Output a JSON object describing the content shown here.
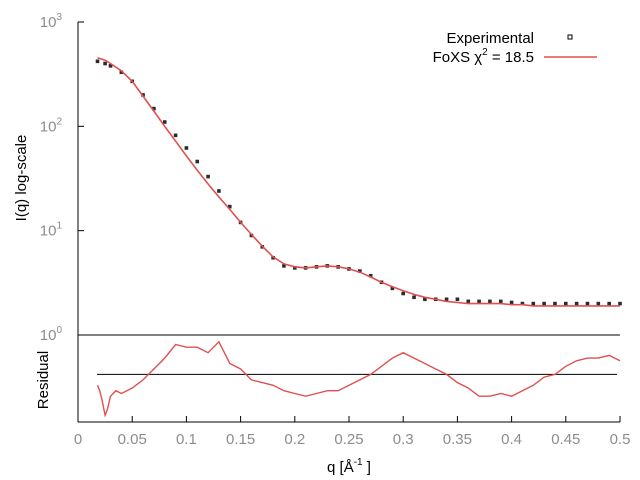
{
  "chart_data": [
    {
      "type": "scatter",
      "panel": "main",
      "xlim": [
        0,
        0.5
      ],
      "ylim": [
        1,
        1000
      ],
      "y_scale": "log",
      "ylabel": "I(q) log-scale",
      "xlabel": "",
      "y_ticks": [
        {
          "value": 1,
          "base": "10",
          "exp": "0"
        },
        {
          "value": 10,
          "base": "10",
          "exp": "1"
        },
        {
          "value": 100,
          "base": "10",
          "exp": "2"
        },
        {
          "value": 1000,
          "base": "10",
          "exp": "3"
        }
      ],
      "legend": {
        "position": "top-right",
        "experimental_label": "Experimental",
        "foxs_label_prefix": "FoXS χ",
        "foxs_label_exp": "2",
        "foxs_label_suffix": " = 18.5"
      },
      "series": [
        {
          "name": "Experimental",
          "style": "points",
          "color": "#2b2b2b",
          "x": [
            0.018,
            0.025,
            0.03,
            0.04,
            0.05,
            0.06,
            0.07,
            0.08,
            0.09,
            0.1,
            0.11,
            0.12,
            0.13,
            0.14,
            0.15,
            0.16,
            0.17,
            0.18,
            0.19,
            0.2,
            0.21,
            0.22,
            0.23,
            0.24,
            0.25,
            0.26,
            0.27,
            0.28,
            0.29,
            0.3,
            0.31,
            0.32,
            0.33,
            0.34,
            0.35,
            0.36,
            0.37,
            0.38,
            0.39,
            0.4,
            0.41,
            0.42,
            0.43,
            0.44,
            0.45,
            0.46,
            0.47,
            0.48,
            0.49,
            0.5
          ],
          "y": [
            420,
            400,
            380,
            330,
            270,
            200,
            148,
            110,
            82,
            62,
            46,
            33,
            24,
            17,
            12,
            9.0,
            7.0,
            5.5,
            4.6,
            4.4,
            4.4,
            4.5,
            4.6,
            4.5,
            4.3,
            4.1,
            3.7,
            3.2,
            2.8,
            2.5,
            2.3,
            2.2,
            2.2,
            2.2,
            2.2,
            2.1,
            2.1,
            2.1,
            2.1,
            2.05,
            2.0,
            2.0,
            2.0,
            2.0,
            2.0,
            2.0,
            2.0,
            2.0,
            2.0,
            2.0
          ]
        },
        {
          "name": "FoXS",
          "style": "line",
          "color": "#e05050",
          "x": [
            0.018,
            0.025,
            0.03,
            0.04,
            0.05,
            0.06,
            0.07,
            0.08,
            0.09,
            0.1,
            0.11,
            0.12,
            0.13,
            0.14,
            0.15,
            0.16,
            0.17,
            0.18,
            0.19,
            0.2,
            0.21,
            0.22,
            0.23,
            0.24,
            0.25,
            0.26,
            0.27,
            0.28,
            0.29,
            0.3,
            0.31,
            0.32,
            0.33,
            0.34,
            0.35,
            0.36,
            0.37,
            0.38,
            0.39,
            0.4,
            0.41,
            0.42,
            0.43,
            0.44,
            0.45,
            0.46,
            0.47,
            0.48,
            0.49,
            0.5
          ],
          "y": [
            455,
            430,
            400,
            340,
            270,
            195,
            140,
            100,
            72,
            52,
            38,
            28,
            21,
            16,
            12,
            9.2,
            7.1,
            5.6,
            4.8,
            4.5,
            4.4,
            4.5,
            4.6,
            4.5,
            4.3,
            4.0,
            3.6,
            3.2,
            2.9,
            2.65,
            2.45,
            2.3,
            2.2,
            2.1,
            2.05,
            2.0,
            2.0,
            2.0,
            2.0,
            1.95,
            1.95,
            1.9,
            1.9,
            1.9,
            1.9,
            1.9,
            1.9,
            1.9,
            1.9,
            1.9
          ]
        }
      ]
    },
    {
      "type": "line",
      "panel": "residual",
      "xlim": [
        0,
        0.5
      ],
      "ylim": [
        -1.75,
        1.45
      ],
      "ylabel": "Residual",
      "xlabel": "q [Å",
      "xlabel_exp": "-1",
      "xlabel_suffix": " ]",
      "x_ticks": [
        "0",
        "0.05",
        "0.1",
        "0.15",
        "0.2",
        "0.25",
        "0.3",
        "0.35",
        "0.4",
        "0.45",
        "0.5"
      ],
      "zero_line": 0,
      "series": [
        {
          "name": "Residual",
          "color": "#e05050",
          "x": [
            0.018,
            0.02,
            0.022,
            0.025,
            0.027,
            0.03,
            0.035,
            0.04,
            0.05,
            0.06,
            0.07,
            0.08,
            0.09,
            0.1,
            0.11,
            0.12,
            0.13,
            0.14,
            0.15,
            0.16,
            0.17,
            0.18,
            0.19,
            0.2,
            0.21,
            0.22,
            0.23,
            0.24,
            0.25,
            0.26,
            0.27,
            0.28,
            0.29,
            0.3,
            0.31,
            0.32,
            0.33,
            0.34,
            0.35,
            0.36,
            0.37,
            0.38,
            0.39,
            0.4,
            0.41,
            0.42,
            0.43,
            0.44,
            0.45,
            0.46,
            0.47,
            0.48,
            0.49,
            0.5
          ],
          "y": [
            -0.4,
            -0.6,
            -0.9,
            -1.5,
            -1.3,
            -0.8,
            -0.6,
            -0.7,
            -0.5,
            -0.2,
            0.2,
            0.6,
            1.1,
            1.0,
            1.0,
            0.8,
            1.2,
            0.4,
            0.2,
            -0.2,
            -0.3,
            -0.4,
            -0.6,
            -0.7,
            -0.8,
            -0.7,
            -0.6,
            -0.6,
            -0.4,
            -0.2,
            0.0,
            0.3,
            0.6,
            0.8,
            0.6,
            0.4,
            0.2,
            0.0,
            -0.3,
            -0.5,
            -0.8,
            -0.8,
            -0.7,
            -0.8,
            -0.6,
            -0.4,
            -0.1,
            0.0,
            0.3,
            0.5,
            0.6,
            0.6,
            0.7,
            0.5
          ]
        }
      ]
    }
  ]
}
